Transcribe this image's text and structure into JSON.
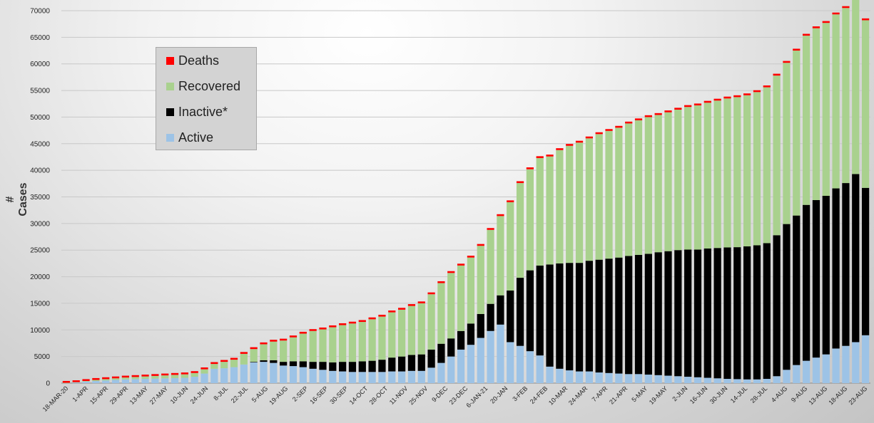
{
  "chart_data": {
    "type": "bar",
    "stacked": true,
    "ylabel": "# Cases",
    "xlabel": "",
    "ylim": [
      0,
      70000
    ],
    "yticks": [
      0,
      5000,
      10000,
      15000,
      20000,
      25000,
      30000,
      35000,
      40000,
      45000,
      50000,
      55000,
      60000,
      65000,
      70000
    ],
    "grid": true,
    "legend_position": "top-left",
    "x_tick_labels": [
      "18-MAR-20",
      "1-APR",
      "15-APR",
      "29-APR",
      "13-MAY",
      "27-MAY",
      "10-JUN",
      "24-JUN",
      "8-JUL",
      "22-JUL",
      "5-AUG",
      "19-AUG",
      "2-SEP",
      "16-SEP",
      "30-SEP",
      "14-OCT",
      "28-OCT",
      "11-NOV",
      "25-NOV",
      "9-DEC",
      "23-DEC",
      "6-JAN-21",
      "20-JAN",
      "3-FEB",
      "24-FEB",
      "10-MAR",
      "24-MAR",
      "7-APR",
      "21-APR",
      "5-MAY",
      "19-MAY",
      "2-JUN",
      "16-JUN",
      "30-JUN",
      "14-JUL",
      "28-JUL",
      "4-AUG",
      "9-AUG",
      "13-AUG",
      "18-AUG",
      "23-AUG"
    ],
    "categories": [
      "18-MAR-20",
      "25-MAR-20",
      "1-APR",
      "8-APR",
      "15-APR",
      "22-APR",
      "29-APR",
      "6-MAY",
      "13-MAY",
      "20-MAY",
      "27-MAY",
      "3-JUN",
      "10-JUN",
      "17-JUN",
      "24-JUN",
      "1-JUL",
      "8-JUL",
      "15-JUL",
      "22-JUL",
      "29-JUL",
      "5-AUG",
      "12-AUG",
      "19-AUG",
      "26-AUG",
      "2-SEP",
      "9-SEP",
      "16-SEP",
      "23-SEP",
      "30-SEP",
      "7-OCT",
      "14-OCT",
      "21-OCT",
      "28-OCT",
      "4-NOV",
      "11-NOV",
      "18-NOV",
      "25-NOV",
      "2-DEC",
      "9-DEC",
      "16-DEC",
      "23-DEC",
      "30-DEC",
      "6-JAN-21",
      "13-JAN-21",
      "20-JAN",
      "27-JAN",
      "3-FEB",
      "10-FEB",
      "17-FEB",
      "24-FEB",
      "3-MAR",
      "10-MAR",
      "17-MAR",
      "24-MAR",
      "31-MAR",
      "7-APR",
      "14-APR",
      "21-APR",
      "28-APR",
      "5-MAY",
      "12-MAY",
      "19-MAY",
      "26-MAY",
      "2-JUN",
      "9-JUN",
      "16-JUN",
      "23-JUN",
      "30-JUN",
      "7-JUL",
      "14-JUL",
      "21-JUL",
      "28-JUL",
      "2-AUG",
      "4-AUG",
      "6-AUG",
      "9-AUG",
      "11-AUG",
      "13-AUG",
      "16-AUG",
      "18-AUG",
      "20-AUG",
      "23-AUG"
    ],
    "series": [
      {
        "name": "Active",
        "color": "#9dc3e6",
        "values": [
          50,
          150,
          300,
          400,
          500,
          600,
          700,
          750,
          800,
          850,
          900,
          950,
          1000,
          1200,
          1800,
          2700,
          2800,
          3000,
          3500,
          3900,
          4000,
          3800,
          3300,
          3200,
          3000,
          2700,
          2500,
          2300,
          2200,
          2100,
          2100,
          2100,
          2100,
          2200,
          2200,
          2300,
          2300,
          2900,
          3800,
          5000,
          6300,
          7200,
          8500,
          9800,
          11000,
          7700,
          7000,
          6000,
          5200,
          3100,
          2700,
          2400,
          2200,
          2200,
          2000,
          1900,
          1800,
          1700,
          1700,
          1600,
          1500,
          1400,
          1300,
          1200,
          1100,
          1000,
          900,
          800,
          750,
          700,
          700,
          800,
          1300,
          2500,
          3400,
          4200,
          4800,
          5400,
          6500,
          7000,
          7700,
          9000
        ]
      },
      {
        "name": "Inactive*",
        "color": "#000000",
        "values": [
          0,
          0,
          0,
          0,
          0,
          0,
          0,
          0,
          0,
          0,
          0,
          0,
          0,
          0,
          0,
          0,
          0,
          0,
          0,
          100,
          300,
          500,
          700,
          900,
          1100,
          1300,
          1500,
          1600,
          1800,
          1900,
          2000,
          2100,
          2300,
          2600,
          2800,
          3000,
          3100,
          3400,
          3600,
          3400,
          3500,
          4000,
          4500,
          5100,
          5500,
          9700,
          12800,
          15200,
          16900,
          19200,
          19800,
          20200,
          20400,
          20800,
          21200,
          21500,
          21800,
          22200,
          22400,
          22700,
          23100,
          23400,
          23700,
          23900,
          24000,
          24300,
          24500,
          24700,
          24800,
          25000,
          25200,
          25500,
          26500,
          27400,
          28100,
          29300,
          29600,
          29800,
          30100,
          30600,
          31600,
          27700
        ]
      },
      {
        "name": "Recovered",
        "color": "#a9d18e",
        "values": [
          10,
          30,
          100,
          200,
          250,
          300,
          350,
          400,
          450,
          500,
          550,
          600,
          650,
          700,
          800,
          900,
          1200,
          1400,
          2000,
          2400,
          3000,
          3500,
          4000,
          4500,
          5200,
          5800,
          6100,
          6600,
          6900,
          7200,
          7400,
          7800,
          8100,
          8500,
          8800,
          9200,
          9600,
          10400,
          11400,
          12300,
          12300,
          12400,
          12800,
          13900,
          14900,
          16600,
          17800,
          19000,
          20200,
          20300,
          21300,
          22000,
          22600,
          23000,
          23600,
          24000,
          24400,
          24900,
          25300,
          25700,
          25800,
          26100,
          26400,
          26800,
          27100,
          27400,
          27700,
          28000,
          28200,
          28400,
          28800,
          29300,
          30000,
          30300,
          31000,
          31800,
          32300,
          32500,
          32700,
          32900,
          33100,
          31500
        ]
      },
      {
        "name": "Deaths",
        "color": "#ff0000",
        "values": [
          0,
          0,
          0,
          0,
          0,
          0,
          0,
          0,
          0,
          0,
          0,
          0,
          0,
          0,
          0,
          0,
          0,
          0,
          0,
          0,
          0,
          0,
          0,
          0,
          0,
          0,
          0,
          0,
          0,
          0,
          0,
          0,
          0,
          0,
          0,
          0,
          0,
          0,
          0,
          0,
          0,
          0,
          0,
          0,
          0,
          0,
          0,
          0,
          0,
          0,
          0,
          0,
          0,
          0,
          0,
          0,
          0,
          0,
          0,
          0,
          0,
          0,
          0,
          0,
          0,
          0,
          0,
          0,
          0,
          0,
          0,
          0,
          0,
          0,
          0,
          0,
          0,
          0,
          0,
          0,
          0,
          0
        ]
      }
    ],
    "legend": [
      {
        "label": "Deaths",
        "color": "#ff0000"
      },
      {
        "label": "Recovered",
        "color": "#a9d18e"
      },
      {
        "label": "Inactive*",
        "color": "#000000"
      },
      {
        "label": "Active",
        "color": "#9dc3e6"
      }
    ]
  }
}
